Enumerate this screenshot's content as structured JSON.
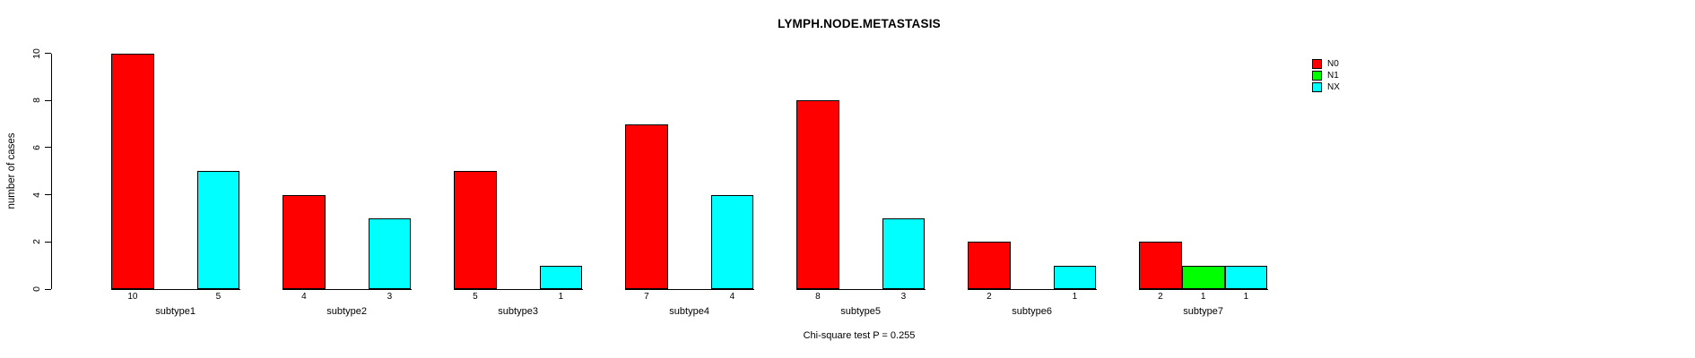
{
  "title": "LYMPH.NODE.METASTASIS",
  "footnote": "Chi-square test P = 0.255",
  "y_axis": {
    "label": "number of cases",
    "ticks": [
      0,
      2,
      4,
      6,
      8,
      10
    ]
  },
  "legend": {
    "position": "top-right",
    "items": [
      {
        "label": "N0",
        "color": "#FF0000"
      },
      {
        "label": "N1",
        "color": "#00FF00"
      },
      {
        "label": "NX",
        "color": "#00FFFF"
      }
    ]
  },
  "chart_data": {
    "type": "bar",
    "grouped": true,
    "title": "LYMPH.NODE.METASTASIS",
    "xlabel": "",
    "ylabel": "number of cases",
    "ylim": [
      0,
      10
    ],
    "yticks": [
      0,
      2,
      4,
      6,
      8,
      10
    ],
    "grid": false,
    "legend_position": "top-right",
    "bar_value_labels": true,
    "categories": [
      "subtype1",
      "subtype2",
      "subtype3",
      "subtype4",
      "subtype5",
      "subtype6",
      "subtype7"
    ],
    "series": [
      {
        "name": "N0",
        "color": "#FF0000",
        "values": [
          10,
          4,
          5,
          7,
          8,
          2,
          2
        ]
      },
      {
        "name": "N1",
        "color": "#00FF00",
        "values": [
          0,
          0,
          0,
          0,
          0,
          0,
          1
        ]
      },
      {
        "name": "NX",
        "color": "#00FFFF",
        "values": [
          5,
          3,
          1,
          4,
          3,
          1,
          1
        ]
      }
    ],
    "annotation": "Chi-square test P = 0.255"
  }
}
